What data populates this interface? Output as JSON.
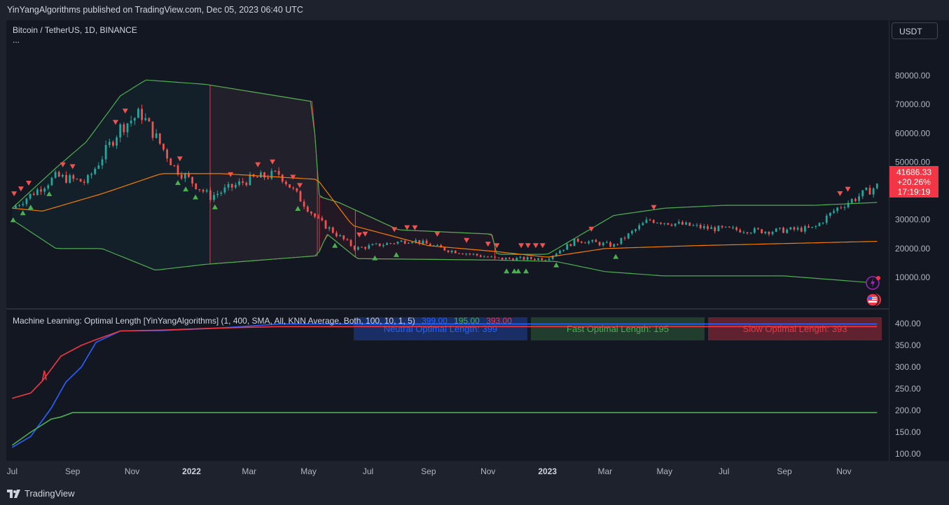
{
  "caption": "YinYangAlgorithms published on TradingView.com, Dec 05, 2023 06:40 UTC",
  "symbol_title": "Bitcoin / TetherUS, 1D, BINANCE",
  "ellipsis": "...",
  "currency": "USDT",
  "price_tag": {
    "price": "41686.33",
    "change": "+20.26%",
    "timer": "17:19:19"
  },
  "indicator": {
    "title": "Machine Learning: Optimal Length [YinYangAlgorithms] (1, 400, SMA, All, KNN Average, Both, 100, 10, 1, 5)",
    "v1": "399.00",
    "v2": "195.00",
    "v3": "393.00"
  },
  "logo_text": "TradingView",
  "colors": {
    "bull": "#26a69a",
    "bear": "#ef5350",
    "green_band": "#4caf50",
    "orange_basis": "#f57c00",
    "blue": "#2962ff",
    "red_line": "#f23645"
  },
  "chart_data": [
    {
      "type": "line",
      "title": "Bitcoin / TetherUS, 1D, BINANCE",
      "x_ticks": [
        "Jul",
        "Sep",
        "Nov",
        "2022",
        "Mar",
        "May",
        "Jul",
        "Sep",
        "Nov",
        "2023",
        "Mar",
        "May",
        "Jul",
        "Sep",
        "Nov"
      ],
      "y_ticks": [
        "80000.00",
        "70000.00",
        "60000.00",
        "50000.00",
        "40000.00",
        "30000.00",
        "20000.00",
        "10000.00"
      ],
      "ylim": [
        0,
        82000
      ],
      "series": [
        {
          "name": "Price",
          "x": [
            "2021-07-01",
            "2021-08-15",
            "2021-09-15",
            "2021-10-20",
            "2021-11-10",
            "2021-12-15",
            "2022-01-20",
            "2022-03-01",
            "2022-04-01",
            "2022-05-10",
            "2022-06-18",
            "2022-08-15",
            "2022-09-20",
            "2022-11-10",
            "2022-12-31",
            "2023-01-31",
            "2023-03-10",
            "2023-04-15",
            "2023-06-15",
            "2023-08-15",
            "2023-10-01",
            "2023-10-25",
            "2023-12-05"
          ],
          "values": [
            34000,
            45000,
            43000,
            62000,
            67000,
            48000,
            38000,
            44000,
            46000,
            30000,
            20000,
            23000,
            19500,
            16500,
            16500,
            23000,
            21000,
            30000,
            27000,
            26000,
            27000,
            34000,
            41686
          ]
        },
        {
          "name": "Upper Band",
          "x": [
            "2021-07-01",
            "2021-08-15",
            "2021-09-15",
            "2021-10-20",
            "2021-11-15",
            "2022-01-15",
            "2022-05-05",
            "2022-05-12",
            "2022-06-01",
            "2022-08-01",
            "2022-11-05",
            "2022-11-10",
            "2023-01-01",
            "2023-03-10",
            "2023-05-01",
            "2023-07-01",
            "2023-10-01",
            "2023-12-05"
          ],
          "values": [
            34000,
            48000,
            57000,
            73000,
            78500,
            77000,
            71000,
            38000,
            36000,
            26500,
            25000,
            18000,
            18000,
            31500,
            34000,
            35000,
            35000,
            36000
          ]
        },
        {
          "name": "Basis",
          "x": [
            "2021-07-01",
            "2021-08-01",
            "2021-10-01",
            "2021-12-01",
            "2022-02-01",
            "2022-05-10",
            "2022-06-15",
            "2022-09-01",
            "2022-11-08",
            "2023-01-01",
            "2023-03-01",
            "2023-06-01",
            "2023-12-05"
          ],
          "values": [
            34000,
            33000,
            39000,
            46000,
            46000,
            44000,
            28000,
            21000,
            19000,
            17000,
            20000,
            21000,
            22500
          ]
        },
        {
          "name": "Lower Band",
          "x": [
            "2021-07-01",
            "2021-08-15",
            "2021-10-01",
            "2021-11-25",
            "2022-01-15",
            "2022-05-10",
            "2022-05-20",
            "2022-06-20",
            "2022-11-10",
            "2023-01-10",
            "2023-03-01",
            "2023-05-01",
            "2023-09-01",
            "2023-12-05"
          ],
          "values": [
            30000,
            20000,
            20000,
            12500,
            14500,
            17500,
            25000,
            16500,
            16000,
            15500,
            12000,
            10500,
            10500,
            8000
          ]
        }
      ]
    },
    {
      "type": "line",
      "title": "Machine Learning: Optimal Length [YinYangAlgorithms] (1, 400, SMA, All, KNN Average, Both, 100, 10, 1, 5)",
      "y_ticks": [
        "400.00",
        "350.00",
        "300.00",
        "250.00",
        "200.00",
        "150.00",
        "100.00"
      ],
      "ylim": [
        95,
        410
      ],
      "series": [
        {
          "name": "Neutral Optimal Length",
          "x": [
            "2021-07-01",
            "2021-07-20",
            "2021-08-10",
            "2021-08-25",
            "2021-09-10",
            "2021-09-25",
            "2021-10-20",
            "2021-12-01",
            "2022-02-01",
            "2022-04-01",
            "2023-12-05"
          ],
          "values": [
            115,
            140,
            205,
            265,
            300,
            357,
            383,
            384,
            390,
            399,
            399
          ]
        },
        {
          "name": "Fast Optimal Length",
          "x": [
            "2021-07-01",
            "2021-07-20",
            "2021-08-10",
            "2021-08-20",
            "2021-09-01",
            "2023-12-05"
          ],
          "values": [
            120,
            150,
            180,
            185,
            195,
            195
          ]
        },
        {
          "name": "Slow Optimal Length",
          "x": [
            "2021-07-01",
            "2021-07-20",
            "2021-08-01",
            "2021-08-20",
            "2021-09-10",
            "2021-09-25",
            "2021-10-20",
            "2021-12-01",
            "2022-02-01",
            "2022-04-01",
            "2023-12-05"
          ],
          "values": [
            228,
            240,
            268,
            325,
            350,
            363,
            383,
            385,
            390,
            393,
            393
          ]
        }
      ],
      "labels": [
        "Neutral Optimal Length: 399",
        "Fast Optimal Length: 195",
        "Slow Optimal Length: 393"
      ]
    }
  ]
}
